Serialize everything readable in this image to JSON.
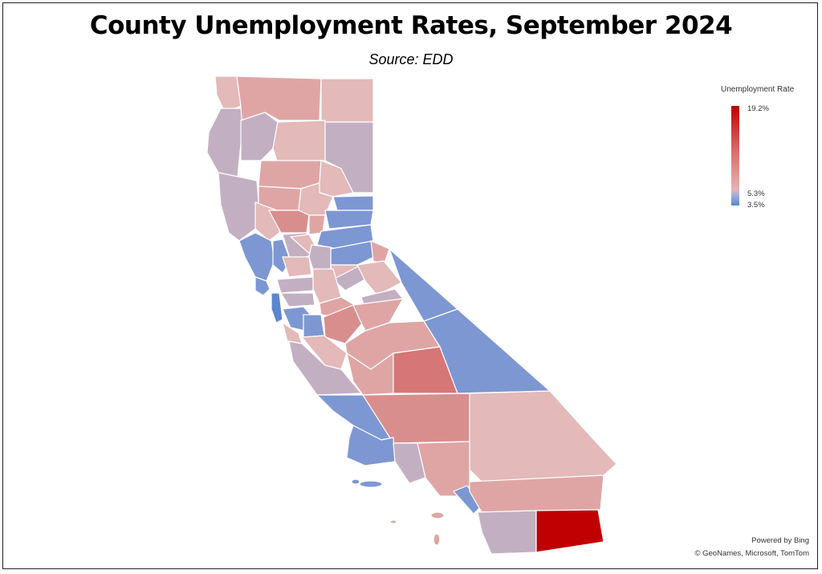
{
  "title": "County Unemployment Rates, September 2024",
  "subtitle": "Source:  EDD",
  "legend": {
    "title": "Unemployment Rate",
    "max_label": "19.2%",
    "mid_label": "5.3%",
    "min_label": "3.5%",
    "colors": {
      "max": "#c00000",
      "mid": "#e7b3b3",
      "min": "#5b86d0"
    }
  },
  "attribution": {
    "line1": "Powered by Bing",
    "line2": "© GeoNames, Microsoft, TomTom"
  },
  "palette": {
    "blue": "#7d97d2",
    "blue_dark": "#5b86d0",
    "lavender": "#c3afc2",
    "pink_light": "#e3b9b9",
    "pink": "#dfa5a5",
    "salmon": "#d98e8e",
    "red_mid": "#d67676",
    "red": "#c00000"
  }
}
